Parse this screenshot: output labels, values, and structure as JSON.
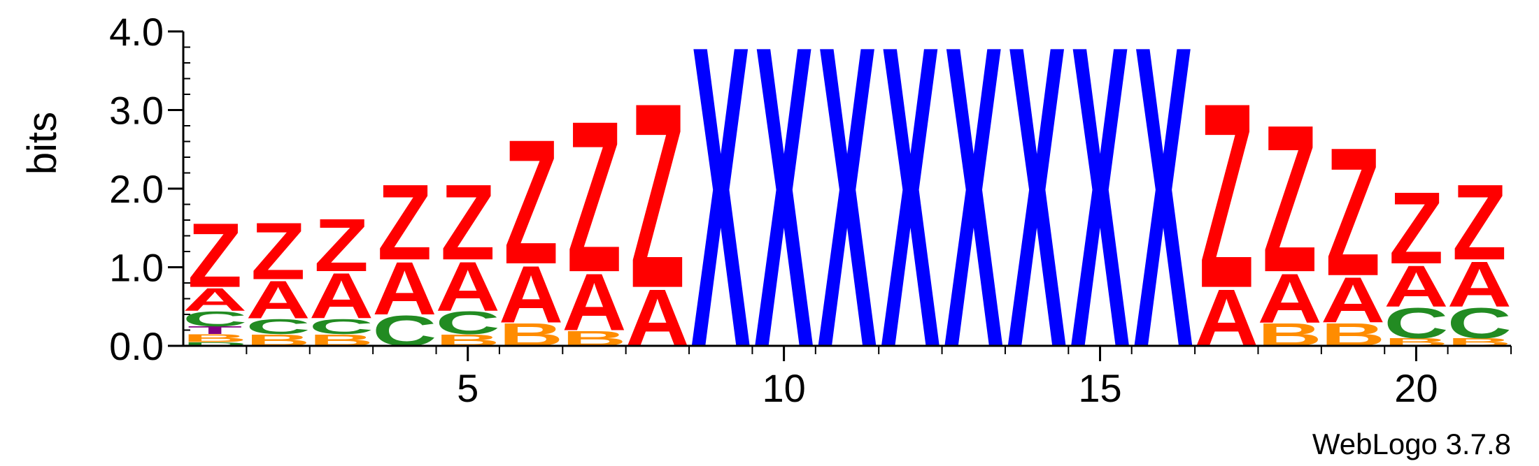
{
  "chart_data": {
    "type": "sequence-logo",
    "ylabel": "bits",
    "ylim": [
      0,
      4.0
    ],
    "y_ticks": [
      "0.0",
      "1.0",
      "2.0",
      "3.0",
      "4.0"
    ],
    "x_ticks": [
      5,
      10,
      15,
      20
    ],
    "positions": [
      1,
      2,
      3,
      4,
      5,
      6,
      7,
      8,
      9,
      10,
      11,
      12,
      13,
      14,
      15,
      16,
      17,
      18,
      19,
      20,
      21
    ],
    "colors": {
      "Z": "#ff0000",
      "A": "#ff0000",
      "C": "#228b22",
      "B": "#ff8c00",
      "X": "#0000ff",
      "D": "#228b22",
      "T": "#800080"
    },
    "stacks": [
      [
        {
          "letter": "D",
          "bits": 0.05
        },
        {
          "letter": "B",
          "bits": 0.1
        },
        {
          "letter": "T",
          "bits": 0.1
        },
        {
          "letter": "C",
          "bits": 0.2
        },
        {
          "letter": "A",
          "bits": 0.3
        },
        {
          "letter": "Z",
          "bits": 0.85
        }
      ],
      [
        {
          "letter": "B",
          "bits": 0.15
        },
        {
          "letter": "C",
          "bits": 0.2
        },
        {
          "letter": "A",
          "bits": 0.5
        },
        {
          "letter": "Z",
          "bits": 0.75
        }
      ],
      [
        {
          "letter": "B",
          "bits": 0.15
        },
        {
          "letter": "C",
          "bits": 0.2
        },
        {
          "letter": "A",
          "bits": 0.6
        },
        {
          "letter": "Z",
          "bits": 0.7
        }
      ],
      [
        {
          "letter": "C",
          "bits": 0.4
        },
        {
          "letter": "A",
          "bits": 0.7
        },
        {
          "letter": "Z",
          "bits": 1.0
        }
      ],
      [
        {
          "letter": "B",
          "bits": 0.15
        },
        {
          "letter": "C",
          "bits": 0.3
        },
        {
          "letter": "A",
          "bits": 0.65
        },
        {
          "letter": "Z",
          "bits": 1.0
        }
      ],
      [
        {
          "letter": "B",
          "bits": 0.3
        },
        {
          "letter": "A",
          "bits": 0.75
        },
        {
          "letter": "Z",
          "bits": 1.65
        }
      ],
      [
        {
          "letter": "B",
          "bits": 0.2
        },
        {
          "letter": "A",
          "bits": 0.75
        },
        {
          "letter": "Z",
          "bits": 2.0
        }
      ],
      [
        {
          "letter": "A",
          "bits": 0.75
        },
        {
          "letter": "Z",
          "bits": 2.45
        }
      ],
      [
        {
          "letter": "X",
          "bits": 4.0
        }
      ],
      [
        {
          "letter": "X",
          "bits": 4.0
        }
      ],
      [
        {
          "letter": "X",
          "bits": 4.0
        }
      ],
      [
        {
          "letter": "X",
          "bits": 4.0
        }
      ],
      [
        {
          "letter": "X",
          "bits": 4.0
        }
      ],
      [
        {
          "letter": "X",
          "bits": 4.0
        }
      ],
      [
        {
          "letter": "X",
          "bits": 4.0
        }
      ],
      [
        {
          "letter": "X",
          "bits": 4.0
        }
      ],
      [
        {
          "letter": "A",
          "bits": 0.75
        },
        {
          "letter": "Z",
          "bits": 2.45
        }
      ],
      [
        {
          "letter": "B",
          "bits": 0.3
        },
        {
          "letter": "A",
          "bits": 0.65
        },
        {
          "letter": "Z",
          "bits": 1.95
        }
      ],
      [
        {
          "letter": "B",
          "bits": 0.3
        },
        {
          "letter": "A",
          "bits": 0.6
        },
        {
          "letter": "Z",
          "bits": 1.7
        }
      ],
      [
        {
          "letter": "B",
          "bits": 0.1
        },
        {
          "letter": "C",
          "bits": 0.4
        },
        {
          "letter": "A",
          "bits": 0.55
        },
        {
          "letter": "Z",
          "bits": 0.95
        }
      ],
      [
        {
          "letter": "B",
          "bits": 0.1
        },
        {
          "letter": "C",
          "bits": 0.4
        },
        {
          "letter": "A",
          "bits": 0.6
        },
        {
          "letter": "Z",
          "bits": 1.0
        }
      ]
    ]
  },
  "footer": {
    "credit": "WebLogo 3.7.8"
  }
}
